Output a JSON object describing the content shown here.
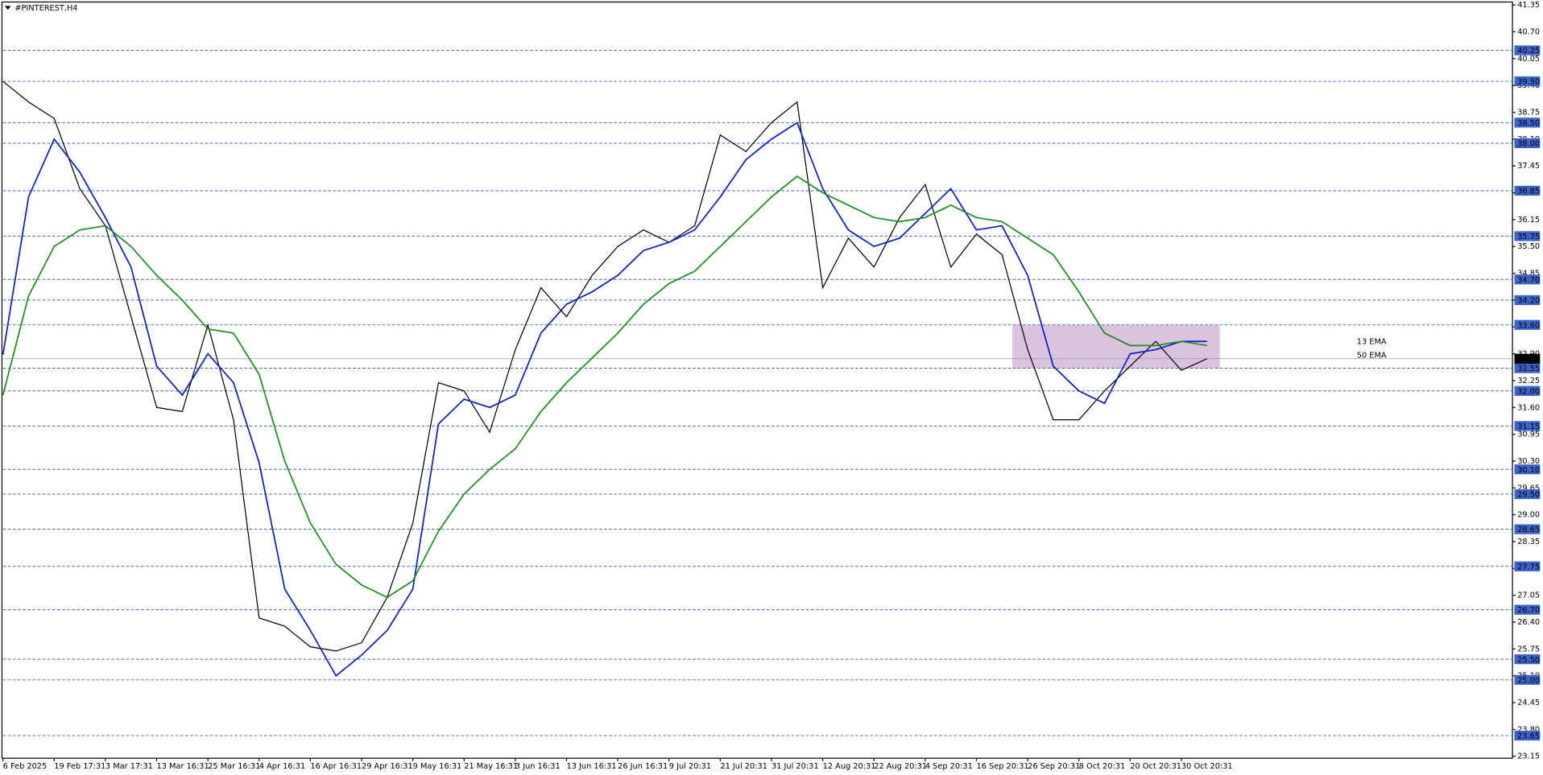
{
  "chart_data": {
    "type": "line",
    "title": "#PINTEREST,H4",
    "x": [
      "6 Feb 2025",
      null,
      "19 Feb 17:31",
      null,
      "3 Mar 17:31",
      null,
      "13 Mar 16:31",
      null,
      "25 Mar 16:31",
      null,
      "4 Apr 16:31",
      null,
      "16 Apr 16:31",
      null,
      "29 Apr 16:31",
      null,
      "9 May 16:31",
      null,
      "21 May 16:31",
      null,
      "3 Jun 16:31",
      null,
      "13 Jun 16:31",
      null,
      "26 Jun 16:31",
      null,
      "9 Jul 20:31",
      null,
      "21 Jul 20:31",
      null,
      "31 Jul 20:31",
      null,
      "12 Aug 20:31",
      null,
      "22 Aug 20:31",
      null,
      "4 Sep 20:31",
      null,
      "16 Sep 20:31",
      null,
      "26 Sep 20:31",
      null,
      "8 Oct 20:31",
      null,
      "20 Oct 20:31",
      null,
      "30 Oct 20:31",
      null
    ],
    "series": [
      {
        "color": "#000000",
        "values": [
          39.5,
          39.0,
          38.6,
          36.9,
          36.0,
          33.8,
          31.6,
          31.5,
          33.6,
          31.3,
          26.5,
          26.3,
          25.8,
          25.7,
          25.9,
          27.0,
          28.8,
          32.2,
          32.0,
          31.0,
          33.0,
          34.5,
          33.8,
          34.8,
          35.5,
          35.9,
          35.6,
          36.0,
          38.2,
          37.8,
          38.5,
          39.0,
          34.5,
          35.7,
          35.0,
          36.2,
          37.0,
          35.0,
          35.8,
          35.3,
          33.0,
          31.3,
          31.3,
          32.0,
          32.6,
          33.2,
          32.5,
          32.78
        ]
      },
      {
        "name": "13 EMA",
        "color": "#0a1ec8",
        "values": [
          32.88,
          36.7,
          38.1,
          37.3,
          36.2,
          35.0,
          32.6,
          31.9,
          32.9,
          32.2,
          30.26,
          27.2,
          26.2,
          25.1,
          25.6,
          26.2,
          27.2,
          31.2,
          31.8,
          31.6,
          31.9,
          33.4,
          34.1,
          34.4,
          34.8,
          35.4,
          35.6,
          35.9,
          36.7,
          37.6,
          38.1,
          38.5,
          36.9,
          35.9,
          35.5,
          35.7,
          36.3,
          36.9,
          35.9,
          36.0,
          34.8,
          32.6,
          32.0,
          31.7,
          32.9,
          33.0,
          33.2,
          33.2
        ]
      },
      {
        "name": "50 EMA",
        "color": "#1e8c1e",
        "values": [
          31.9,
          34.3,
          35.5,
          35.9,
          36.0,
          35.5,
          34.8,
          34.2,
          33.5,
          33.4,
          32.4,
          30.3,
          28.8,
          27.8,
          27.3,
          27.0,
          27.4,
          28.6,
          29.5,
          30.1,
          30.6,
          31.5,
          32.2,
          32.8,
          33.4,
          34.1,
          34.6,
          34.9,
          35.5,
          36.1,
          36.7,
          37.2,
          36.8,
          36.5,
          36.2,
          36.1,
          36.2,
          36.5,
          36.2,
          36.1,
          35.7,
          35.3,
          34.4,
          33.4,
          33.1,
          33.1,
          33.2,
          33.1
        ]
      }
    ],
    "ylim": [
      23.15,
      41.35
    ],
    "yticks": [
      23.15,
      {
        "value": 23.8,
        "label": "23.80"
      },
      24.45,
      {
        "value": 25.1,
        "label": "25.10"
      },
      25.75,
      {
        "value": 26.4,
        "label": "26.40"
      },
      27.05,
      {
        "value": 27.7,
        "label": "27.70"
      },
      28.35,
      {
        "value": 29.0,
        "label": "29.00"
      },
      29.65,
      {
        "value": 30.3,
        "label": "30.30"
      },
      30.95,
      {
        "value": 31.6,
        "label": "31.60"
      },
      32.25,
      {
        "value": 32.9,
        "label": "32.90"
      },
      33.55,
      {
        "value": 34.2,
        "label": "34.20"
      },
      34.85,
      {
        "value": 35.5,
        "label": "35.50"
      },
      36.15,
      {
        "value": 36.8,
        "label": "36.80"
      },
      37.45,
      {
        "value": 38.1,
        "label": "38.10"
      },
      38.75,
      {
        "value": 39.4,
        "label": "39.40"
      },
      40.05,
      {
        "value": 40.7,
        "label": "40.70"
      },
      41.35
    ],
    "levels": [
      40.25,
      {
        "value": 39.5,
        "label": "39.50"
      },
      {
        "value": 38.5,
        "label": "38.50"
      },
      {
        "value": 38.0,
        "label": "38.00"
      },
      36.85,
      35.75,
      {
        "value": 34.7,
        "label": "34.70"
      },
      {
        "value": 34.2,
        "label": "34.20"
      },
      {
        "value": 33.6,
        "label": "33.60"
      },
      32.55,
      {
        "value": 32.0,
        "label": "32.00"
      },
      31.15,
      {
        "value": 30.1,
        "label": "30.10"
      },
      {
        "value": 29.5,
        "label": "29.50"
      },
      28.65,
      27.75,
      {
        "value": 26.7,
        "label": "26.70"
      },
      {
        "value": 25.5,
        "label": "25.50"
      },
      {
        "value": 25.0,
        "label": "25.00"
      },
      23.65
    ],
    "levels_color": "#3c64c8",
    "last": 32.78,
    "zone": {
      "y": [
        32.55,
        33.6
      ],
      "x": [
        39.4,
        47.5
      ],
      "color": "#d2b4d7"
    },
    "grid": false
  }
}
